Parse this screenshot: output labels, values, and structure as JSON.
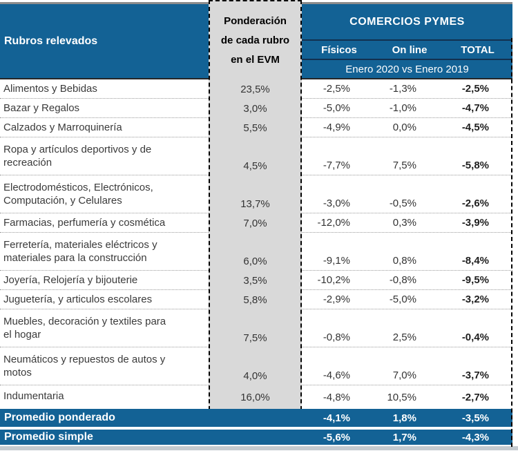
{
  "header": {
    "col_rubros": "Rubros relevados",
    "col_ponderacion": "Ponderación\nde cada rubro\nen el EVM",
    "group_title": "COMERCIOS PYMES",
    "subcol_fisicos": "Físicos",
    "subcol_online": "On line",
    "subcol_total": "TOTAL",
    "period": "Enero 2020 vs Enero 2019"
  },
  "rows": [
    {
      "label": "Alimentos y Bebidas",
      "ponderacion": "23,5%",
      "fisicos": "-2,5%",
      "online": "-1,3%",
      "total": "-2,5%"
    },
    {
      "label": "Bazar y Regalos",
      "ponderacion": "3,0%",
      "fisicos": "-5,0%",
      "online": "-1,0%",
      "total": "-4,7%"
    },
    {
      "label": "Calzados y Marroquinería",
      "ponderacion": "5,5%",
      "fisicos": "-4,9%",
      "online": "0,0%",
      "total": "-4,5%"
    },
    {
      "label": "Ropa y artículos deportivos y de\nrecreación",
      "ponderacion": "4,5%",
      "fisicos": "-7,7%",
      "online": "7,5%",
      "total": "-5,8%"
    },
    {
      "label": "Electrodomésticos, Electrónicos,\nComputación, y Celulares",
      "ponderacion": "13,7%",
      "fisicos": "-3,0%",
      "online": "-0,5%",
      "total": "-2,6%"
    },
    {
      "label": "Farmacias, perfumería y cosmética",
      "ponderacion": "7,0%",
      "fisicos": "-12,0%",
      "online": "0,3%",
      "total": "-3,9%"
    },
    {
      "label": "Ferretería, materiales eléctricos y\nmateriales para la construcción",
      "ponderacion": "6,0%",
      "fisicos": "-9,1%",
      "online": "0,8%",
      "total": "-8,4%"
    },
    {
      "label": "Joyería, Relojería y bijouterie",
      "ponderacion": "3,5%",
      "fisicos": "-10,2%",
      "online": "-0,8%",
      "total": "-9,5%"
    },
    {
      "label": "Juguetería, y articulos escolares",
      "ponderacion": "5,8%",
      "fisicos": "-2,9%",
      "online": "-5,0%",
      "total": "-3,2%"
    },
    {
      "label": "Muebles, decoración y textiles para\nel hogar",
      "ponderacion": "7,5%",
      "fisicos": "-0,8%",
      "online": "2,5%",
      "total": "-0,4%"
    },
    {
      "label": "Neumáticos y repuestos de autos y\nmotos",
      "ponderacion": "4,0%",
      "fisicos": "-4,6%",
      "online": "7,0%",
      "total": "-3,7%"
    },
    {
      "label": "Indumentaria",
      "ponderacion": "16,0%",
      "fisicos": "-4,8%",
      "online": "10,5%",
      "total": "-2,7%"
    }
  ],
  "footer": [
    {
      "label": "Promedio ponderado",
      "fisicos": "-4,1%",
      "online": "1,8%",
      "total": "-3,5%"
    },
    {
      "label": "Promedio simple",
      "fisicos": "-5,6%",
      "online": "1,7%",
      "total": "-4,3%"
    }
  ],
  "colors": {
    "header_blue": "#136295",
    "dark_line": "#12304F",
    "ponderacion_gray": "#D9D9D9",
    "bottom_strip": "#C3CAD0",
    "body_text": "#3A3A3A"
  },
  "chart_data": {
    "type": "table",
    "title": "COMERCIOS PYMES",
    "period": "Enero 2020 vs Enero 2019",
    "columns": [
      "Rubros relevados",
      "Ponderación de cada rubro en el EVM (%)",
      "Físicos (%)",
      "On line (%)",
      "TOTAL (%)"
    ],
    "rows": [
      [
        "Alimentos y Bebidas",
        23.5,
        -2.5,
        -1.3,
        -2.5
      ],
      [
        "Bazar y Regalos",
        3.0,
        -5.0,
        -1.0,
        -4.7
      ],
      [
        "Calzados y Marroquinería",
        5.5,
        -4.9,
        0.0,
        -4.5
      ],
      [
        "Ropa y artículos deportivos y de recreación",
        4.5,
        -7.7,
        7.5,
        -5.8
      ],
      [
        "Electrodomésticos, Electrónicos, Computación, y Celulares",
        13.7,
        -3.0,
        -0.5,
        -2.6
      ],
      [
        "Farmacias, perfumería y cosmética",
        7.0,
        -12.0,
        0.3,
        -3.9
      ],
      [
        "Ferretería, materiales eléctricos y materiales para la construcción",
        6.0,
        -9.1,
        0.8,
        -8.4
      ],
      [
        "Joyería, Relojería y bijouterie",
        3.5,
        -10.2,
        -0.8,
        -9.5
      ],
      [
        "Juguetería, y articulos escolares",
        5.8,
        -2.9,
        -5.0,
        -3.2
      ],
      [
        "Muebles, decoración y textiles para el hogar",
        7.5,
        -0.8,
        2.5,
        -0.4
      ],
      [
        "Neumáticos y repuestos de autos y motos",
        4.0,
        -4.6,
        7.0,
        -3.7
      ],
      [
        "Indumentaria",
        16.0,
        -4.8,
        10.5,
        -2.7
      ]
    ],
    "summary_rows": [
      [
        "Promedio ponderado",
        null,
        -4.1,
        1.8,
        -3.5
      ],
      [
        "Promedio simple",
        null,
        -5.6,
        1.7,
        -4.3
      ]
    ]
  }
}
